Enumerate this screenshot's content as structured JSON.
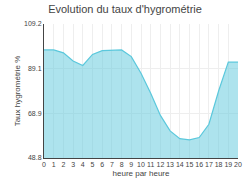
{
  "chart_data": {
    "type": "area",
    "title": "Evolution du taux d'hygrométrie",
    "xlabel": "heure par heure",
    "ylabel": "Taux hygrométrie %",
    "x": [
      0,
      1,
      2,
      3,
      4,
      5,
      6,
      7,
      8,
      9,
      10,
      11,
      12,
      13,
      14,
      15,
      16,
      17,
      18,
      19,
      20
    ],
    "values": [
      97.5,
      97.5,
      96.2,
      92.5,
      90.5,
      95.5,
      97.2,
      97.5,
      97.5,
      94.5,
      87.0,
      78.0,
      68.0,
      61.0,
      57.5,
      57.0,
      58.0,
      64.0,
      79.0,
      92.0,
      92.0
    ],
    "color": "#5bc8dc",
    "xlim": [
      0,
      20
    ],
    "xticks": [
      0,
      1,
      2,
      3,
      4,
      5,
      6,
      7,
      8,
      9,
      10,
      11,
      12,
      13,
      14,
      15,
      16,
      17,
      18,
      19,
      20
    ],
    "ylim": [
      48.8,
      109.2
    ],
    "yticks": [
      48.8,
      68.9,
      89.1,
      109.2
    ],
    "grid": true
  }
}
